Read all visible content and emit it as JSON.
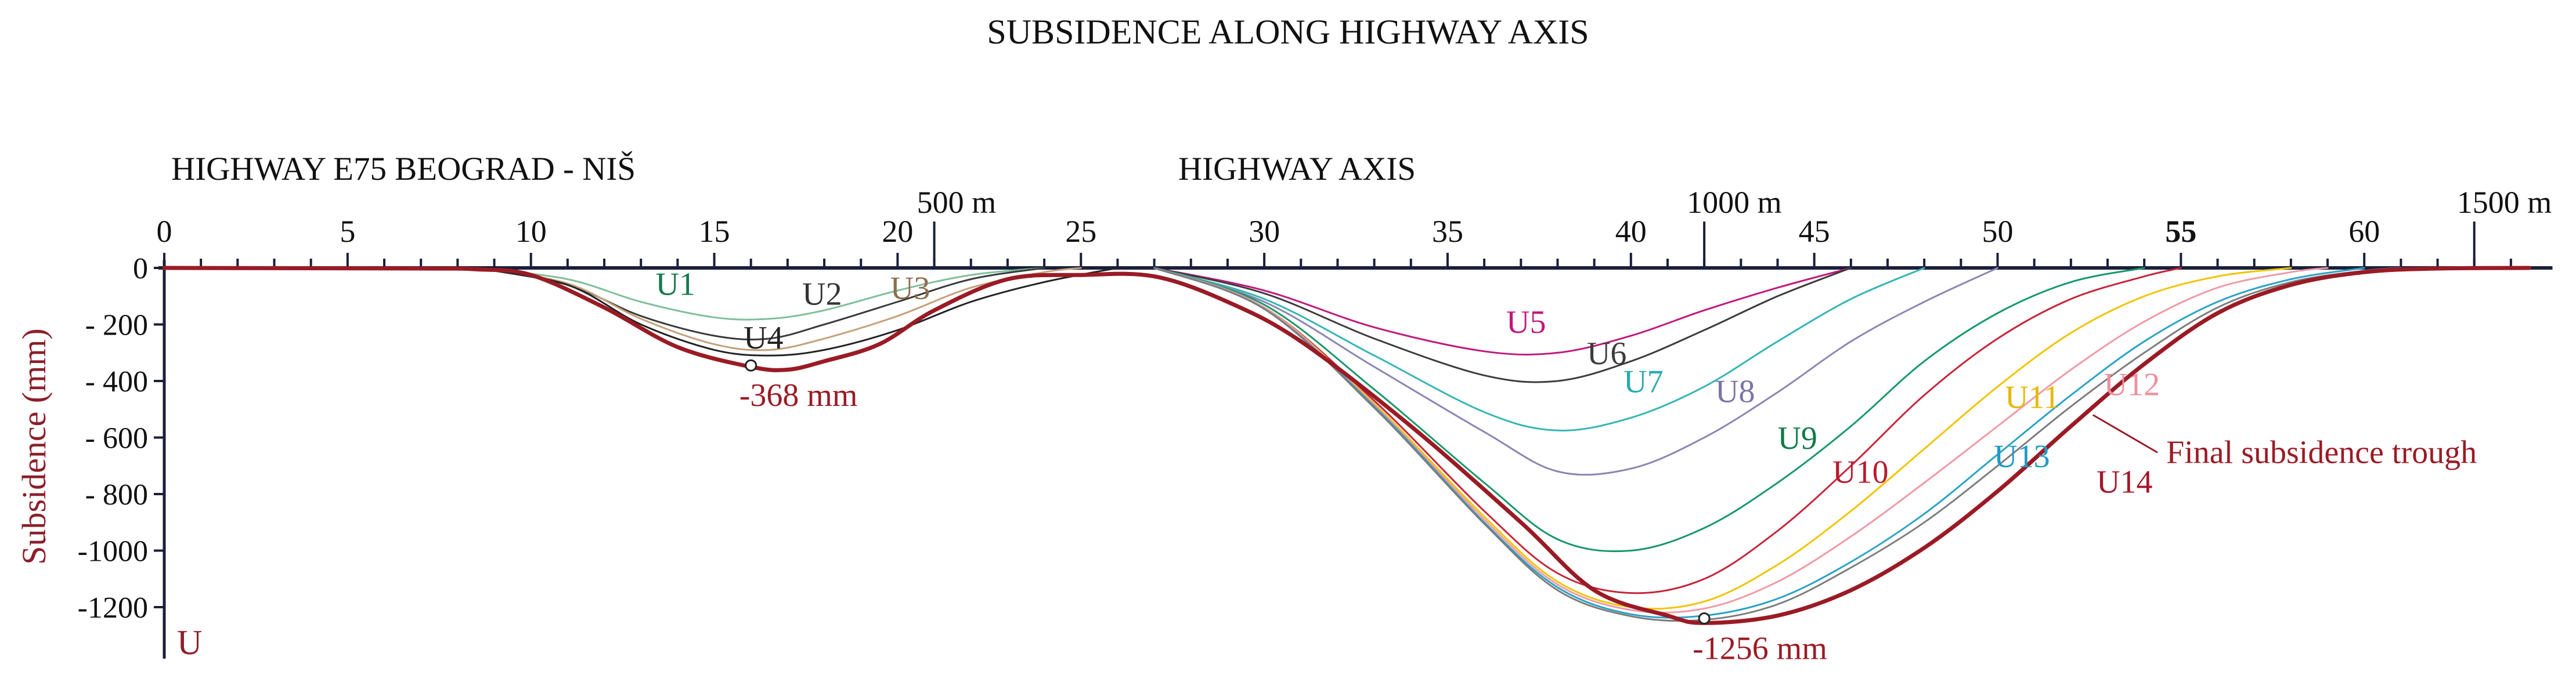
{
  "chart_data": {
    "type": "line",
    "title": "SUBSIDENCE ALONG HIGHWAY AXIS",
    "subtitle_left": "HIGHWAY E75 BEOGRAD - NIŠ",
    "subtitle_center": "HIGHWAY AXIS",
    "ylabel": "Subsidence (mm)",
    "y_axis_symbol": "U",
    "xlim": [
      0,
      64.5
    ],
    "ylim": [
      -1300,
      0
    ],
    "x_ticks": [
      0,
      5,
      10,
      15,
      20,
      25,
      30,
      35,
      40,
      45,
      50,
      55,
      60
    ],
    "y_ticks": [
      0,
      -200,
      -400,
      -600,
      -800,
      -1000,
      -1200
    ],
    "y_tick_labels": [
      "0",
      "- 200",
      "- 400",
      "- 600",
      "- 800",
      "-1000",
      "-1200"
    ],
    "distance_marks": [
      {
        "x": 21.0,
        "label": "500 m"
      },
      {
        "x": 42.0,
        "label": "1000 m"
      },
      {
        "x": 63.0,
        "label": "1500 m"
      }
    ],
    "grid": false,
    "series": [
      {
        "name": "U1",
        "color": "#7fbf9a",
        "width": 3,
        "points": [
          [
            8.5,
            0
          ],
          [
            11,
            -40
          ],
          [
            13,
            -120
          ],
          [
            15,
            -175
          ],
          [
            16.5,
            -180
          ],
          [
            18,
            -150
          ],
          [
            20,
            -80
          ],
          [
            22,
            -25
          ],
          [
            24,
            0
          ]
        ],
        "label": {
          "x": 13.4,
          "y": -95,
          "color": "#137a4b"
        }
      },
      {
        "name": "U2",
        "color": "#3a3a3a",
        "width": 3,
        "points": [
          [
            8.5,
            0
          ],
          [
            11,
            -60
          ],
          [
            13,
            -170
          ],
          [
            15,
            -240
          ],
          [
            16.5,
            -250
          ],
          [
            18,
            -200
          ],
          [
            20,
            -120
          ],
          [
            22,
            -40
          ],
          [
            24,
            0
          ]
        ],
        "label": {
          "x": 17.4,
          "y": -130,
          "color": "#333333"
        }
      },
      {
        "name": "U3",
        "color": "#c5a07a",
        "width": 3,
        "points": [
          [
            8.5,
            0
          ],
          [
            11,
            -55
          ],
          [
            13,
            -180
          ],
          [
            15,
            -270
          ],
          [
            16.5,
            -290
          ],
          [
            18,
            -250
          ],
          [
            20,
            -170
          ],
          [
            22,
            -70
          ],
          [
            24,
            -15
          ],
          [
            25,
            0
          ]
        ],
        "label": {
          "x": 19.8,
          "y": -110,
          "color": "#8c6e4e"
        }
      },
      {
        "name": "U4",
        "color": "#222222",
        "width": 3,
        "points": [
          [
            8.5,
            0
          ],
          [
            11,
            -60
          ],
          [
            13,
            -200
          ],
          [
            15,
            -290
          ],
          [
            16.5,
            -310
          ],
          [
            18,
            -290
          ],
          [
            20,
            -220
          ],
          [
            22,
            -120
          ],
          [
            24,
            -50
          ],
          [
            26,
            0
          ]
        ],
        "label": {
          "x": 15.8,
          "y": -285,
          "color": "#222222"
        }
      },
      {
        "name": "U5",
        "color": "#c2187e",
        "width": 3,
        "points": [
          [
            27,
            0
          ],
          [
            30,
            -80
          ],
          [
            33,
            -210
          ],
          [
            36,
            -295
          ],
          [
            38,
            -300
          ],
          [
            40,
            -240
          ],
          [
            42,
            -150
          ],
          [
            44,
            -70
          ],
          [
            46,
            0
          ]
        ],
        "label": {
          "x": 36.6,
          "y": -230,
          "color": "#c2187e"
        }
      },
      {
        "name": "U6",
        "color": "#3c3c3c",
        "width": 3,
        "points": [
          [
            27,
            0
          ],
          [
            30,
            -90
          ],
          [
            33,
            -250
          ],
          [
            36,
            -380
          ],
          [
            38,
            -400
          ],
          [
            40,
            -330
          ],
          [
            42,
            -220
          ],
          [
            44,
            -100
          ],
          [
            46,
            0
          ]
        ],
        "label": {
          "x": 38.8,
          "y": -340,
          "color": "#3c3c3c"
        }
      },
      {
        "name": "U7",
        "color": "#35b5b5",
        "width": 3,
        "points": [
          [
            27,
            0
          ],
          [
            30,
            -110
          ],
          [
            33,
            -310
          ],
          [
            36,
            -510
          ],
          [
            38,
            -575
          ],
          [
            40,
            -530
          ],
          [
            42,
            -420
          ],
          [
            44,
            -260
          ],
          [
            46,
            -110
          ],
          [
            48,
            0
          ]
        ],
        "label": {
          "x": 39.8,
          "y": -440,
          "color": "#2aa8b5"
        }
      },
      {
        "name": "U8",
        "color": "#8a86b2",
        "width": 3,
        "points": [
          [
            27,
            0
          ],
          [
            30,
            -120
          ],
          [
            33,
            -350
          ],
          [
            36,
            -580
          ],
          [
            38,
            -720
          ],
          [
            40,
            -710
          ],
          [
            42,
            -600
          ],
          [
            44,
            -440
          ],
          [
            46,
            -260
          ],
          [
            48,
            -120
          ],
          [
            50,
            0
          ]
        ],
        "label": {
          "x": 42.3,
          "y": -475,
          "color": "#7a75a6"
        }
      },
      {
        "name": "U9",
        "color": "#169869",
        "width": 3,
        "points": [
          [
            27,
            0
          ],
          [
            30,
            -130
          ],
          [
            33,
            -430
          ],
          [
            36,
            -760
          ],
          [
            38,
            -960
          ],
          [
            40,
            -1000
          ],
          [
            42,
            -920
          ],
          [
            44,
            -760
          ],
          [
            46,
            -560
          ],
          [
            48,
            -330
          ],
          [
            50,
            -160
          ],
          [
            52,
            -50
          ],
          [
            54,
            0
          ]
        ],
        "label": {
          "x": 44.0,
          "y": -640,
          "color": "#0f7a48"
        }
      },
      {
        "name": "U10",
        "color": "#c6243a",
        "width": 3,
        "points": [
          [
            27,
            0
          ],
          [
            30,
            -140
          ],
          [
            33,
            -470
          ],
          [
            36,
            -860
          ],
          [
            38,
            -1080
          ],
          [
            40,
            -1150
          ],
          [
            42,
            -1100
          ],
          [
            44,
            -930
          ],
          [
            46,
            -700
          ],
          [
            48,
            -450
          ],
          [
            50,
            -250
          ],
          [
            52,
            -110
          ],
          [
            54,
            -30
          ],
          [
            55,
            0
          ]
        ],
        "label": {
          "x": 45.5,
          "y": -760,
          "color": "#b81c2e"
        }
      },
      {
        "name": "U11",
        "color": "#f2c400",
        "width": 3,
        "points": [
          [
            27,
            0
          ],
          [
            30,
            -140
          ],
          [
            33,
            -480
          ],
          [
            36,
            -880
          ],
          [
            38,
            -1110
          ],
          [
            40,
            -1200
          ],
          [
            42,
            -1180
          ],
          [
            44,
            -1050
          ],
          [
            46,
            -860
          ],
          [
            48,
            -640
          ],
          [
            50,
            -420
          ],
          [
            52,
            -230
          ],
          [
            54,
            -100
          ],
          [
            56,
            -30
          ],
          [
            58,
            0
          ]
        ],
        "label": {
          "x": 50.2,
          "y": -495,
          "color": "#e8b800"
        }
      },
      {
        "name": "U12",
        "color": "#ef9aa6",
        "width": 3,
        "points": [
          [
            27,
            0
          ],
          [
            30,
            -140
          ],
          [
            33,
            -485
          ],
          [
            36,
            -890
          ],
          [
            38,
            -1120
          ],
          [
            40,
            -1210
          ],
          [
            42,
            -1205
          ],
          [
            44,
            -1110
          ],
          [
            46,
            -950
          ],
          [
            48,
            -760
          ],
          [
            50,
            -560
          ],
          [
            52,
            -360
          ],
          [
            54,
            -190
          ],
          [
            56,
            -70
          ],
          [
            58,
            -15
          ],
          [
            59,
            0
          ]
        ],
        "label": {
          "x": 52.9,
          "y": -450,
          "color": "#ee8f9e"
        }
      },
      {
        "name": "U13",
        "color": "#2aa2c8",
        "width": 3,
        "points": [
          [
            27,
            0
          ],
          [
            30,
            -145
          ],
          [
            33,
            -490
          ],
          [
            36,
            -900
          ],
          [
            38,
            -1130
          ],
          [
            40,
            -1225
          ],
          [
            42,
            -1230
          ],
          [
            44,
            -1170
          ],
          [
            46,
            -1040
          ],
          [
            48,
            -870
          ],
          [
            50,
            -660
          ],
          [
            52,
            -450
          ],
          [
            54,
            -260
          ],
          [
            56,
            -120
          ],
          [
            58,
            -40
          ],
          [
            60,
            0
          ]
        ],
        "label": {
          "x": 49.9,
          "y": -705,
          "color": "#1f9ac7"
        }
      },
      {
        "name": "U14",
        "color": "#7d7d7d",
        "width": 3,
        "points": [
          [
            27,
            0
          ],
          [
            30,
            -145
          ],
          [
            33,
            -495
          ],
          [
            36,
            -905
          ],
          [
            38,
            -1140
          ],
          [
            40,
            -1232
          ],
          [
            42,
            -1245
          ],
          [
            44,
            -1190
          ],
          [
            46,
            -1060
          ],
          [
            48,
            -900
          ],
          [
            50,
            -700
          ],
          [
            52,
            -490
          ],
          [
            54,
            -300
          ],
          [
            56,
            -140
          ],
          [
            58,
            -50
          ],
          [
            60,
            -10
          ],
          [
            61,
            0
          ]
        ],
        "label": {
          "x": 52.7,
          "y": -795,
          "color": "#a3162a"
        }
      },
      {
        "name": "Final subsidence trough",
        "color": "#9a1b25",
        "width": 7,
        "points": [
          [
            0,
            0
          ],
          [
            7,
            -2
          ],
          [
            8.5,
            -5
          ],
          [
            10,
            -25
          ],
          [
            12,
            -140
          ],
          [
            14,
            -280
          ],
          [
            16,
            -350
          ],
          [
            17,
            -360
          ],
          [
            18,
            -330
          ],
          [
            19.5,
            -270
          ],
          [
            21,
            -150
          ],
          [
            23,
            -40
          ],
          [
            25,
            -25
          ],
          [
            27,
            -30
          ],
          [
            29,
            -120
          ],
          [
            31,
            -260
          ],
          [
            34,
            -560
          ],
          [
            37,
            -900
          ],
          [
            39,
            -1140
          ],
          [
            41,
            -1230
          ],
          [
            42,
            -1256
          ],
          [
            44,
            -1230
          ],
          [
            46,
            -1140
          ],
          [
            48,
            -990
          ],
          [
            50,
            -790
          ],
          [
            52,
            -560
          ],
          [
            54,
            -340
          ],
          [
            56,
            -160
          ],
          [
            58,
            -60
          ],
          [
            60,
            -15
          ],
          [
            62,
            -2
          ],
          [
            64.5,
            0
          ]
        ]
      }
    ],
    "annotations": [
      {
        "text": "-368 mm",
        "x": 16.0,
        "y": -345,
        "color": "#9a1b25",
        "marker": true
      },
      {
        "text": "-1256 mm",
        "x": 42.0,
        "y": -1240,
        "color": "#9a1b25",
        "marker": true
      },
      {
        "text": "Final subsidence trough",
        "x": 54.6,
        "y": -690,
        "color": "#9a1b25",
        "leader_from": [
          52.6,
          -520
        ]
      }
    ]
  }
}
